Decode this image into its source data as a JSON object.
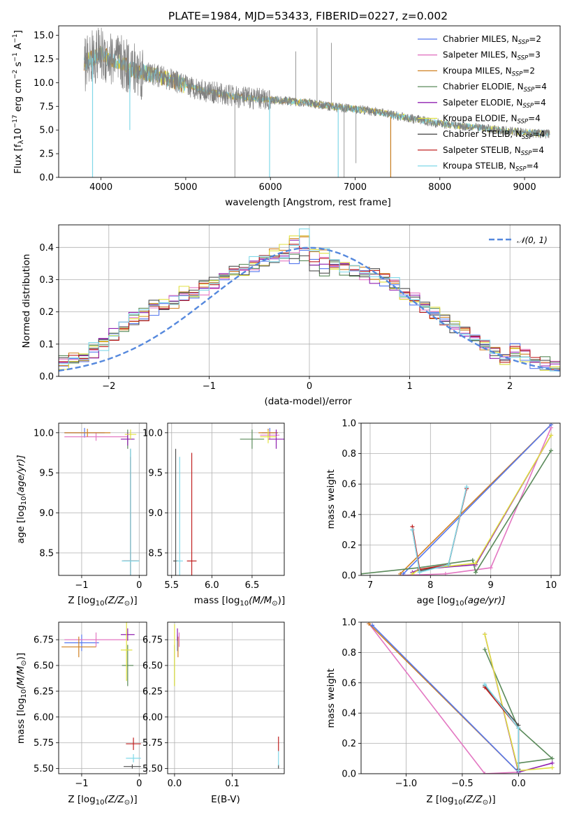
{
  "figure": {
    "title": "PLATE=1984, MJD=53433, FIBERID=0227, z=0.002"
  },
  "models": [
    {
      "name": "Chabrier MILES, N_SSP=2",
      "label_main": "Chabrier MILES, N",
      "label_sub": "SSP",
      "label_tail": "=2",
      "color": "#5577ee"
    },
    {
      "name": "Salpeter MILES, N_SSP=3",
      "label_main": "Salpeter MILES, N",
      "label_sub": "SSP",
      "label_tail": "=3",
      "color": "#e377c2"
    },
    {
      "name": "Kroupa MILES, N_SSP=2",
      "label_main": "Kroupa MILES, N",
      "label_sub": "SSP",
      "label_tail": "=2",
      "color": "#d08020"
    },
    {
      "name": "Chabrier ELODIE, N_SSP=4",
      "label_main": "Chabrier ELODIE, N",
      "label_sub": "SSP",
      "label_tail": "=4",
      "color": "#5a8a5a"
    },
    {
      "name": "Salpeter ELODIE, N_SSP=4",
      "label_main": "Salpeter ELODIE, N",
      "label_sub": "SSP",
      "label_tail": "=4",
      "color": "#9020b0"
    },
    {
      "name": "Kroupa ELODIE, N_SSP=4",
      "label_main": "Kroupa ELODIE, N",
      "label_sub": "SSP",
      "label_tail": "=4",
      "color": "#e0e040"
    },
    {
      "name": "Chabrier STELIB, N_SSP=4",
      "label_main": "Chabrier STELIB, N",
      "label_sub": "SSP",
      "label_tail": "=4",
      "color": "#505050"
    },
    {
      "name": "Salpeter STELIB, N_SSP=4",
      "label_main": "Salpeter STELIB, N",
      "label_sub": "SSP",
      "label_tail": "=4",
      "color": "#c02020"
    },
    {
      "name": "Kroupa STELIB, N_SSP=4",
      "label_main": "Kroupa STELIB, N",
      "label_sub": "SSP",
      "label_tail": "=4",
      "color": "#80d8e8"
    }
  ],
  "chart_data": [
    {
      "id": "spectrum",
      "type": "line",
      "title": "PLATE=1984, MJD=53433, FIBERID=0227, z=0.002",
      "xlabel": "wavelength [Angstrom, rest frame]",
      "ylabel_main": "Flux [f",
      "ylabel_sub": "λ",
      "ylabel_rest": "10",
      "ylabel_exp": "−17",
      "ylabel_tail": " erg cm",
      "ylabel_exp2": "−2",
      "ylabel_tail2": " s",
      "ylabel_exp3": "−1",
      "ylabel_tail3": " A",
      "ylabel_exp4": "−1",
      "ylabel_end": "]",
      "xlim": [
        3500,
        9420
      ],
      "ylim": [
        0,
        16
      ],
      "xticks": [
        4000,
        5000,
        6000,
        7000,
        8000,
        9000
      ],
      "yticks": [
        0.0,
        2.5,
        5.0,
        7.5,
        10.0,
        12.5,
        15.0
      ],
      "ytick_labels": [
        "0.0",
        "2.5",
        "5.0",
        "7.5",
        "10.0",
        "12.5",
        "15.0"
      ],
      "continuum_x": [
        3800,
        3900,
        4000,
        4200,
        4400,
        4600,
        4800,
        5000,
        5300,
        5600,
        6000,
        6400,
        6800,
        7200,
        7600,
        8000,
        8400,
        8800,
        9200
      ],
      "continuum_y": [
        12.0,
        12.6,
        13.0,
        12.2,
        11.3,
        10.9,
        10.4,
        9.7,
        9.0,
        8.5,
        8.2,
        7.9,
        7.4,
        7.0,
        6.3,
        5.7,
        5.3,
        4.9,
        4.6
      ],
      "noise_start": 3800,
      "noise_end": 7450,
      "dips": [
        {
          "x": 3900,
          "y": 0
        },
        {
          "x": 4340,
          "y": 5.0
        },
        {
          "x": 5990,
          "y": 0
        },
        {
          "x": 6800,
          "y": 0
        },
        {
          "x": 7420,
          "y": 0
        }
      ],
      "spikes": [
        {
          "x": 5580,
          "y": 0
        },
        {
          "x": 6300,
          "y": 13.3
        },
        {
          "x": 6550,
          "y": 15.8
        },
        {
          "x": 6720,
          "y": 14.2
        },
        {
          "x": 6870,
          "y": 0
        },
        {
          "x": 7010,
          "y": 1.5
        }
      ],
      "legend_position": "upper right"
    },
    {
      "id": "residuals",
      "type": "bar",
      "xlabel": "(data-model)/error",
      "ylabel": "Normed distribution",
      "xlim": [
        -2.5,
        2.5
      ],
      "ylim": [
        0,
        0.47
      ],
      "xticks": [
        -2,
        -1,
        0,
        1,
        2
      ],
      "xtick_labels": [
        "−2",
        "−1",
        "0",
        "1",
        "2"
      ],
      "yticks": [
        0.0,
        0.1,
        0.2,
        0.3,
        0.4
      ],
      "ytick_labels": [
        "0.0",
        "0.1",
        "0.2",
        "0.3",
        "0.4"
      ],
      "bin_width": 0.1,
      "bin_start": -2.5,
      "hist_base": [
        0.04,
        0.05,
        0.06,
        0.08,
        0.1,
        0.12,
        0.14,
        0.16,
        0.17,
        0.19,
        0.2,
        0.22,
        0.23,
        0.24,
        0.26,
        0.27,
        0.29,
        0.3,
        0.31,
        0.33,
        0.34,
        0.35,
        0.36,
        0.38,
        0.39,
        0.4,
        0.39,
        0.38,
        0.37,
        0.36,
        0.35,
        0.34,
        0.33,
        0.31,
        0.29,
        0.27,
        0.25,
        0.23,
        0.21,
        0.19,
        0.17,
        0.15,
        0.13,
        0.11,
        0.09,
        0.08,
        0.06,
        0.05,
        0.04,
        0.03
      ],
      "hist_jitter": [
        0.02,
        0.03,
        0.04,
        0.05,
        0.03,
        0.05,
        0.04,
        0.06,
        0.04,
        0.05
      ],
      "gauss_label": "𝒩(0, 1)",
      "gauss_color": "#5588dd",
      "legend_position": "upper right"
    },
    {
      "id": "age_vs_Z",
      "type": "scatter",
      "xlabel_main": "Z [log",
      "xlabel_sub": "10",
      "xlabel_tail": "(Z/Z",
      "xlabel_sub2": "⊙",
      "xlabel_end": ")]",
      "ylabel_main": "age  [log",
      "ylabel_sub": "10",
      "ylabel_tail": "(age/yr)]",
      "xlim": [
        -1.4,
        0.13
      ],
      "ylim": [
        8.22,
        10.12
      ],
      "xticks": [
        -1,
        0
      ],
      "xtick_labels": [
        "−1",
        "0"
      ],
      "yticks": [
        8.5,
        9.0,
        9.5,
        10.0
      ],
      "ytick_labels": [
        "8.5",
        "9.0",
        "9.5",
        "10.0"
      ],
      "points": [
        {
          "model": 0,
          "x": -0.95,
          "y": 10.0,
          "xerr": 0.35,
          "yerr": 0.06
        },
        {
          "model": 1,
          "x": -0.75,
          "y": 9.95,
          "xerr": 0.55,
          "yerr": 0.05
        },
        {
          "model": 2,
          "x": -0.9,
          "y": 10.0,
          "xerr": 0.4,
          "yerr": 0.05
        },
        {
          "model": 3,
          "x": -0.2,
          "y": 9.92,
          "xerr": 0.1,
          "yerr": 0.12
        },
        {
          "model": 4,
          "x": -0.2,
          "y": 9.92,
          "xerr": 0.12,
          "yerr": 0.08
        },
        {
          "model": 5,
          "x": -0.15,
          "y": 9.98,
          "xerr": 0.1,
          "yerr": 0.06
        },
        {
          "model": 6,
          "x": -0.15,
          "y": 8.4,
          "xerr": 0.15,
          "yerr": 1.4
        },
        {
          "model": 7,
          "x": -0.15,
          "y": 8.4,
          "xerr": 0.12,
          "yerr": 1.3
        },
        {
          "model": 8,
          "x": -0.15,
          "y": 8.4,
          "xerr": 0.15,
          "yerr": 1.4
        }
      ]
    },
    {
      "id": "age_vs_mass",
      "type": "scatter",
      "xlabel_main": "mass [log",
      "xlabel_sub": "10",
      "xlabel_tail": "(M/M",
      "xlabel_sub2": "⊙",
      "xlabel_end": ")]",
      "xlim": [
        5.45,
        6.9
      ],
      "ylim": [
        8.22,
        10.12
      ],
      "xticks": [
        5.5,
        6.0,
        6.5
      ],
      "xtick_labels": [
        "5.5",
        "6.0",
        "6.5"
      ],
      "yticks": [
        8.5,
        9.0,
        9.5,
        10.0
      ],
      "ytick_labels": [
        "8.5",
        "9.0",
        "9.5",
        "10.0"
      ],
      "points": [
        {
          "model": 0,
          "x": 6.72,
          "y": 10.0,
          "xerr": 0.1,
          "yerr": 0.06
        },
        {
          "model": 1,
          "x": 6.72,
          "y": 9.97,
          "xerr": 0.12,
          "yerr": 0.05
        },
        {
          "model": 2,
          "x": 6.7,
          "y": 10.0,
          "xerr": 0.12,
          "yerr": 0.05
        },
        {
          "model": 3,
          "x": 6.5,
          "y": 9.92,
          "xerr": 0.15,
          "yerr": 0.12
        },
        {
          "model": 4,
          "x": 6.8,
          "y": 9.92,
          "xerr": 0.1,
          "yerr": 0.12
        },
        {
          "model": 5,
          "x": 6.7,
          "y": 9.95,
          "xerr": 0.1,
          "yerr": 0.08
        },
        {
          "model": 6,
          "x": 5.55,
          "y": 8.4,
          "xerr": 0.03,
          "yerr": 1.4
        },
        {
          "model": 7,
          "x": 5.75,
          "y": 8.4,
          "xerr": 0.06,
          "yerr": 1.35
        },
        {
          "model": 8,
          "x": 5.6,
          "y": 8.4,
          "xerr": 0.04,
          "yerr": 1.3
        }
      ]
    },
    {
      "id": "weight_vs_age",
      "type": "line",
      "xlabel_main": "age  [log",
      "xlabel_sub": "10",
      "xlabel_tail": "(age/yr)]",
      "ylabel": "mass weight",
      "xlim": [
        6.85,
        10.15
      ],
      "ylim": [
        0,
        1.0
      ],
      "xticks": [
        7,
        8,
        9,
        10
      ],
      "xtick_labels": [
        "7",
        "8",
        "9",
        "10"
      ],
      "yticks": [
        0.0,
        0.2,
        0.4,
        0.6,
        0.8,
        1.0
      ],
      "ytick_labels": [
        "0.0",
        "0.2",
        "0.4",
        "0.6",
        "0.8",
        "1.0"
      ],
      "series": [
        {
          "model": 1,
          "x": [
            7.5,
            8.25,
            9.0,
            10.0
          ],
          "y": [
            0.0,
            0.01,
            0.05,
            0.97
          ]
        },
        {
          "model": 2,
          "x": [
            7.5,
            10.0
          ],
          "y": [
            0.01,
            0.99
          ]
        },
        {
          "model": 0,
          "x": [
            7.55,
            10.0
          ],
          "y": [
            0.01,
            0.99
          ]
        },
        {
          "model": 3,
          "x": [
            6.85,
            7.8,
            8.7,
            8.75,
            10.0
          ],
          "y": [
            0.01,
            0.05,
            0.1,
            0.02,
            0.82
          ]
        },
        {
          "model": 4,
          "x": [
            7.7,
            7.82,
            8.75,
            10.0
          ],
          "y": [
            0.02,
            0.04,
            0.07,
            0.92
          ]
        },
        {
          "model": 5,
          "x": [
            7.7,
            7.82,
            8.75,
            10.0
          ],
          "y": [
            0.01,
            0.04,
            0.08,
            0.92
          ]
        },
        {
          "model": 6,
          "x": [
            7.7,
            7.82,
            8.3,
            8.6
          ],
          "y": [
            0.3,
            0.03,
            0.07,
            0.58
          ]
        },
        {
          "model": 7,
          "x": [
            7.7,
            7.82,
            8.3,
            8.6
          ],
          "y": [
            0.32,
            0.04,
            0.07,
            0.57
          ]
        },
        {
          "model": 8,
          "x": [
            7.7,
            7.82,
            8.3,
            8.6
          ],
          "y": [
            0.3,
            0.02,
            0.07,
            0.58
          ]
        }
      ]
    },
    {
      "id": "mass_vs_Z",
      "type": "scatter",
      "xlabel_main": "Z [log",
      "xlabel_sub": "10",
      "xlabel_tail": "(Z/Z",
      "xlabel_sub2": "⊙",
      "xlabel_end": ")]",
      "ylabel_main": "mass [log",
      "ylabel_sub": "10",
      "ylabel_tail": "(M/M",
      "ylabel_sub2": "⊙",
      "ylabel_end": ")]",
      "xlim": [
        -1.4,
        0.13
      ],
      "ylim": [
        5.45,
        6.92
      ],
      "xticks": [
        -1,
        0
      ],
      "xtick_labels": [
        "−1",
        "0"
      ],
      "yticks": [
        5.5,
        5.75,
        6.0,
        6.25,
        6.5,
        6.75
      ],
      "ytick_labels": [
        "5.50",
        "5.75",
        "6.00",
        "6.25",
        "6.50",
        "6.75"
      ],
      "points": [
        {
          "model": 0,
          "x": -1.0,
          "y": 6.72,
          "xerr": 0.3,
          "yerr": 0.08
        },
        {
          "model": 1,
          "x": -0.75,
          "y": 6.75,
          "xerr": 0.55,
          "yerr": 0.07
        },
        {
          "model": 2,
          "x": -1.05,
          "y": 6.68,
          "xerr": 0.3,
          "yerr": 0.1
        },
        {
          "model": 3,
          "x": -0.2,
          "y": 6.5,
          "xerr": 0.1,
          "yerr": 0.2
        },
        {
          "model": 4,
          "x": -0.2,
          "y": 6.8,
          "xerr": 0.12,
          "yerr": 0.06
        },
        {
          "model": 5,
          "x": -0.22,
          "y": 6.65,
          "xerr": 0.1,
          "yerr": 0.3
        },
        {
          "model": 6,
          "x": -0.12,
          "y": 5.52,
          "xerr": 0.15,
          "yerr": 0.02
        },
        {
          "model": 7,
          "x": -0.1,
          "y": 5.74,
          "xerr": 0.13,
          "yerr": 0.06
        },
        {
          "model": 8,
          "x": -0.1,
          "y": 5.6,
          "xerr": 0.13,
          "yerr": 0.04
        }
      ]
    },
    {
      "id": "mass_vs_ebv",
      "type": "scatter",
      "xlabel": "E(B-V)",
      "xlim": [
        -0.012,
        0.19
      ],
      "ylim": [
        5.45,
        6.92
      ],
      "xticks": [
        0.0,
        0.1
      ],
      "xtick_labels": [
        "0.0",
        "0.1"
      ],
      "yticks": [
        5.5,
        5.75,
        6.0,
        6.25,
        6.5,
        6.75
      ],
      "ytick_labels": [
        "5.50",
        "5.75",
        "6.00",
        "6.25",
        "6.50",
        "6.75"
      ],
      "points": [
        {
          "model": 0,
          "x": 0.005,
          "y": 6.72,
          "xerr": 0.0,
          "yerr": 0.08
        },
        {
          "model": 1,
          "x": 0.008,
          "y": 6.75,
          "xerr": 0.0,
          "yerr": 0.07
        },
        {
          "model": 2,
          "x": 0.006,
          "y": 6.68,
          "xerr": 0.0,
          "yerr": 0.1
        },
        {
          "model": 3,
          "x": 0.0,
          "y": 6.5,
          "xerr": 0.0,
          "yerr": 0.2
        },
        {
          "model": 4,
          "x": 0.005,
          "y": 6.8,
          "xerr": 0.0,
          "yerr": 0.06
        },
        {
          "model": 5,
          "x": 0.0,
          "y": 6.6,
          "xerr": 0.0,
          "yerr": 0.3
        },
        {
          "model": 6,
          "x": 0.18,
          "y": 5.52,
          "xerr": 0.0,
          "yerr": 0.02
        },
        {
          "model": 7,
          "x": 0.18,
          "y": 5.74,
          "xerr": 0.0,
          "yerr": 0.07
        },
        {
          "model": 8,
          "x": 0.18,
          "y": 5.6,
          "xerr": 0.0,
          "yerr": 0.07
        }
      ]
    },
    {
      "id": "weight_vs_Z",
      "type": "line",
      "xlabel_main": "Z [log",
      "xlabel_sub": "10",
      "xlabel_tail": "(Z/Z",
      "xlabel_sub2": "⊙",
      "xlabel_end": ")]",
      "ylabel": "mass weight",
      "xlim": [
        -1.4,
        0.37
      ],
      "ylim": [
        0,
        1.0
      ],
      "xticks": [
        -1.0,
        -0.5,
        0.0
      ],
      "xtick_labels": [
        "−1.0",
        "−0.5",
        "0.0"
      ],
      "yticks": [
        0.0,
        0.2,
        0.4,
        0.6,
        0.8,
        1.0
      ],
      "ytick_labels": [
        "0.0",
        "0.2",
        "0.4",
        "0.6",
        "0.8",
        "1.0"
      ],
      "series": [
        {
          "model": 1,
          "x": [
            -1.33,
            -0.3,
            0.0
          ],
          "y": [
            0.99,
            0.0,
            0.01
          ]
        },
        {
          "model": 2,
          "x": [
            -1.33,
            0.0
          ],
          "y": [
            0.99,
            0.01
          ]
        },
        {
          "model": 0,
          "x": [
            -1.3,
            0.0
          ],
          "y": [
            0.98,
            0.01
          ]
        },
        {
          "model": 3,
          "x": [
            -0.3,
            0.0,
            0.3,
            0.0
          ],
          "y": [
            0.82,
            0.3,
            0.1,
            0.07
          ]
        },
        {
          "model": 4,
          "x": [
            -0.3,
            0.0,
            0.3
          ],
          "y": [
            0.92,
            0.01,
            0.07
          ]
        },
        {
          "model": 5,
          "x": [
            -0.3,
            0.0,
            0.3
          ],
          "y": [
            0.92,
            0.02,
            0.04
          ]
        },
        {
          "model": 6,
          "x": [
            -0.3,
            0.0,
            0.0
          ],
          "y": [
            0.58,
            0.32,
            0.03
          ]
        },
        {
          "model": 7,
          "x": [
            -0.3,
            0.0,
            0.0
          ],
          "y": [
            0.57,
            0.3,
            0.02
          ]
        },
        {
          "model": 8,
          "x": [
            -0.3,
            0.0,
            0.0
          ],
          "y": [
            0.59,
            0.3,
            0.02
          ]
        }
      ]
    }
  ]
}
